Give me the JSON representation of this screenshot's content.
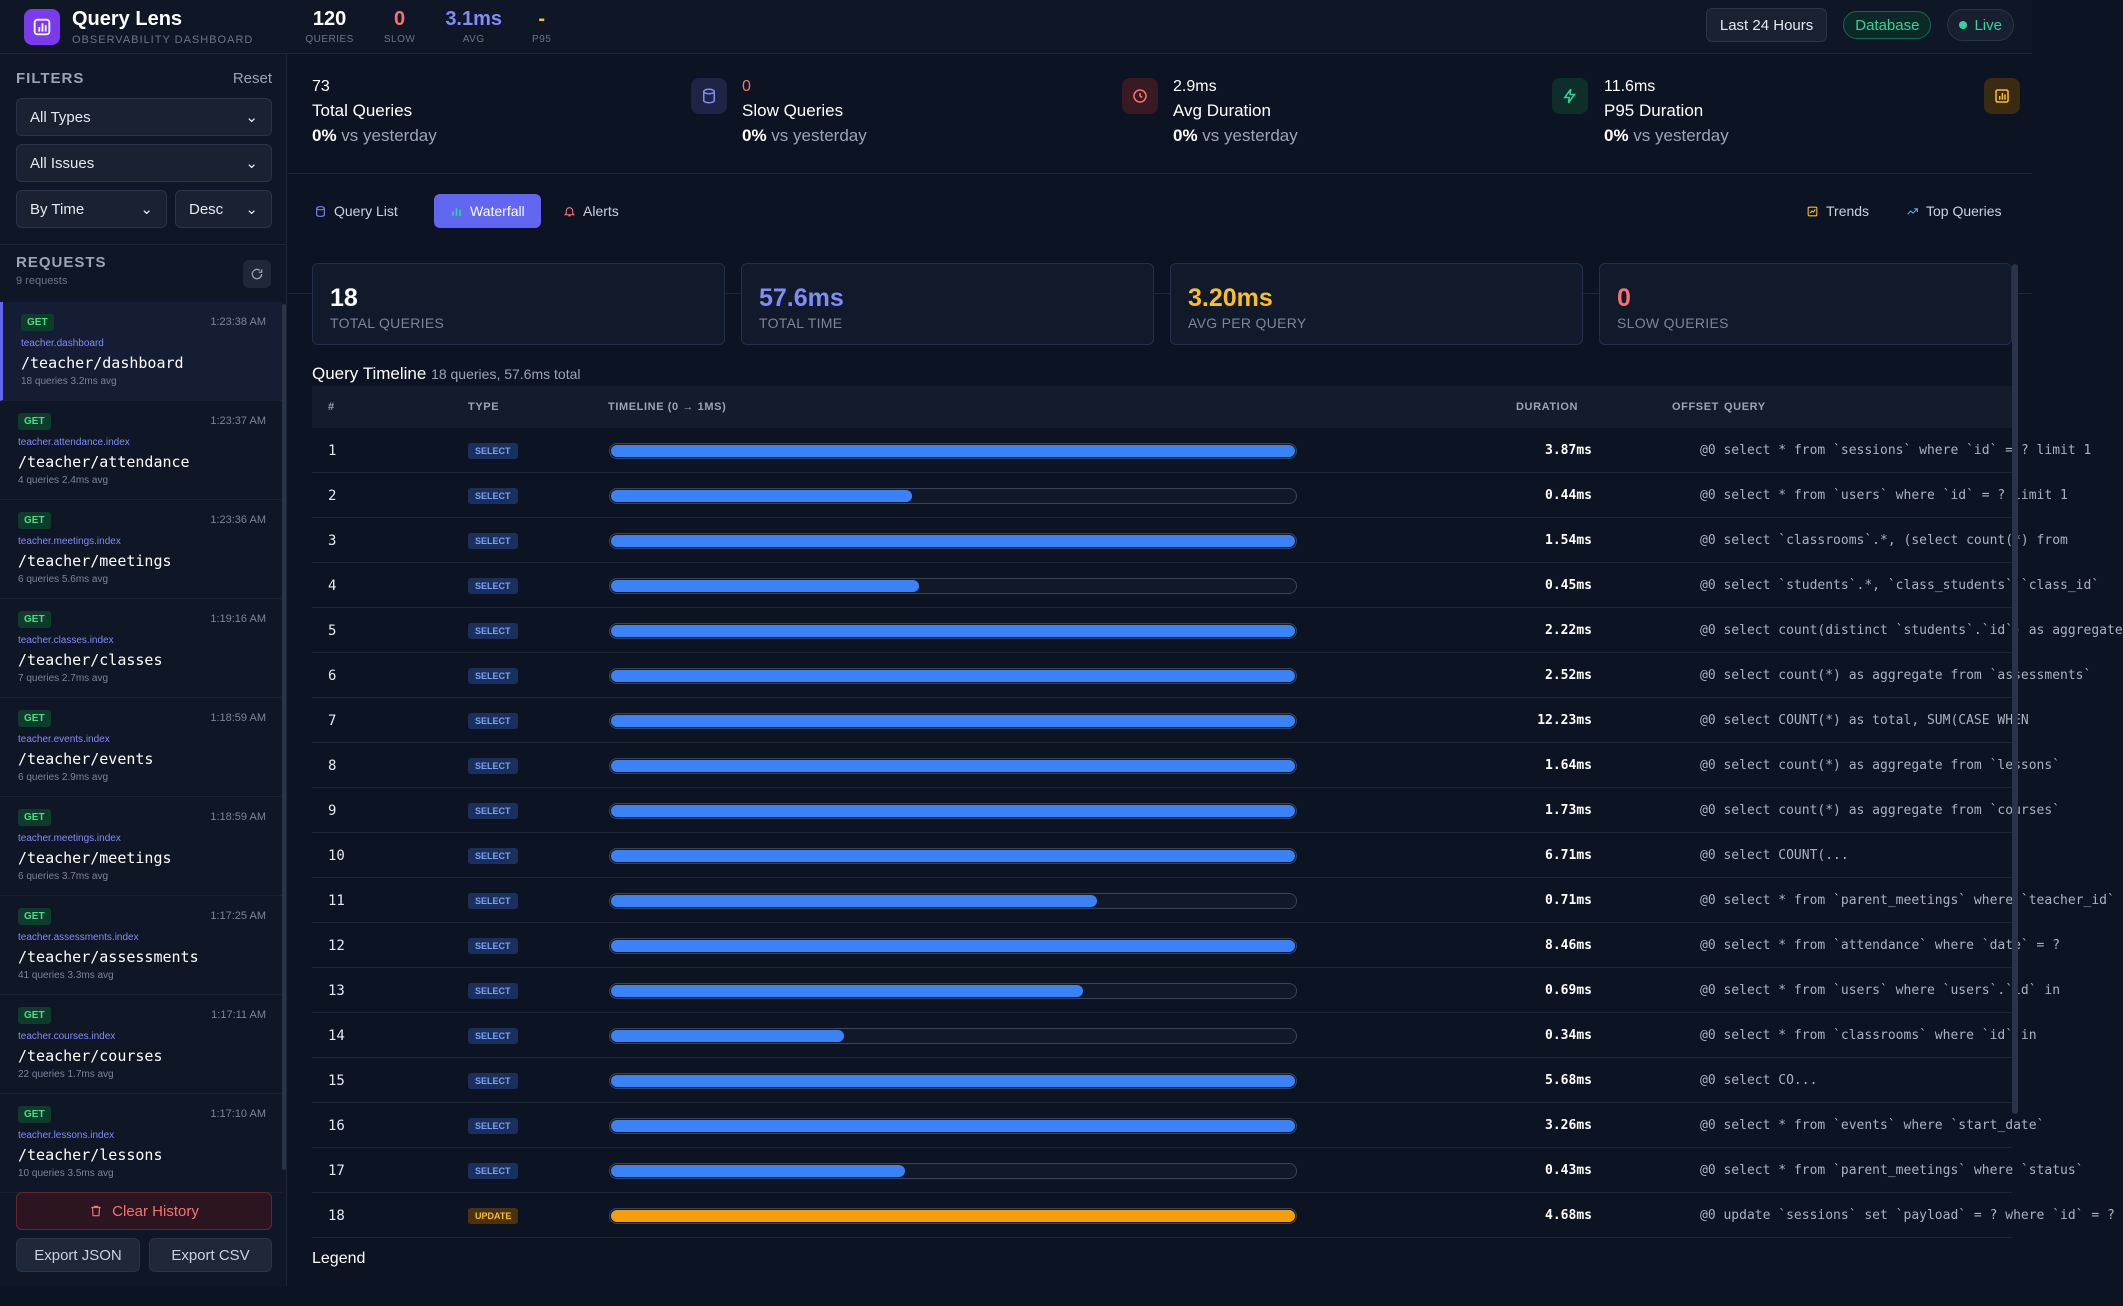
{
  "header": {
    "title": "Query Lens",
    "subtitle": "OBSERVABILITY DASHBOARD",
    "stats": [
      {
        "value": "120",
        "label": "QUERIES",
        "color": "#ffffff"
      },
      {
        "value": "0",
        "label": "SLOW",
        "color": "#f87171"
      },
      {
        "value": "3.1ms",
        "label": "AVG",
        "color": "#818cf8"
      },
      {
        "value": "-",
        "label": "P95",
        "color": "#fbbf24"
      }
    ],
    "range_label": "Last 24 Hours",
    "source_label": "Database",
    "live_label": "Live"
  },
  "sidebar": {
    "filters_title": "FILTERS",
    "reset_label": "Reset",
    "type_select": "All Types",
    "issue_select": "All Issues",
    "sort_select": "By Time",
    "order_select": "Desc",
    "requests_title": "REQUESTS",
    "requests_count": "9 requests",
    "requests": [
      {
        "method": "GET",
        "time": "1:23:38 AM",
        "route": "teacher.dashboard",
        "path": "/teacher/dashboard",
        "meta": "18 queries  3.2ms avg"
      },
      {
        "method": "GET",
        "time": "1:23:37 AM",
        "route": "teacher.attendance.index",
        "path": "/teacher/attendance",
        "meta": "4 queries  2.4ms avg"
      },
      {
        "method": "GET",
        "time": "1:23:36 AM",
        "route": "teacher.meetings.index",
        "path": "/teacher/meetings",
        "meta": "6 queries  5.6ms avg"
      },
      {
        "method": "GET",
        "time": "1:19:16 AM",
        "route": "teacher.classes.index",
        "path": "/teacher/classes",
        "meta": "7 queries  2.7ms avg"
      },
      {
        "method": "GET",
        "time": "1:18:59 AM",
        "route": "teacher.events.index",
        "path": "/teacher/events",
        "meta": "6 queries  2.9ms avg"
      },
      {
        "method": "GET",
        "time": "1:18:59 AM",
        "route": "teacher.meetings.index",
        "path": "/teacher/meetings",
        "meta": "6 queries  3.7ms avg"
      },
      {
        "method": "GET",
        "time": "1:17:25 AM",
        "route": "teacher.assessments.index",
        "path": "/teacher/assessments",
        "meta": "41 queries  3.3ms avg"
      },
      {
        "method": "GET",
        "time": "1:17:11 AM",
        "route": "teacher.courses.index",
        "path": "/teacher/courses",
        "meta": "22 queries  1.7ms avg"
      },
      {
        "method": "GET",
        "time": "1:17:10 AM",
        "route": "teacher.lessons.index",
        "path": "/teacher/lessons",
        "meta": "10 queries  3.5ms avg"
      }
    ],
    "clear_label": "Clear History",
    "export_json_label": "Export JSON",
    "export_csv_label": "Export CSV"
  },
  "summary": [
    {
      "value": "73",
      "name": "Total Queries",
      "delta": "0%",
      "delta_text": "vs yesterday",
      "icon": "database-icon",
      "icon_color": "#818cf8",
      "icon_bg": "#1e2445"
    },
    {
      "value": "0",
      "name": "Slow Queries",
      "delta": "0%",
      "delta_text": "vs yesterday",
      "icon": "clock-icon",
      "icon_color": "#f87171",
      "icon_bg": "#3a1a22",
      "value_color": "#f87171"
    },
    {
      "value": "2.9ms",
      "name": "Avg Duration",
      "delta": "0%",
      "delta_text": "vs yesterday",
      "icon": "bolt-icon",
      "icon_color": "#34d399",
      "icon_bg": "#0e2e2a"
    },
    {
      "value": "11.6ms",
      "name": "P95 Duration",
      "delta": "0%",
      "delta_text": "vs yesterday",
      "icon": "bar-chart-icon",
      "icon_color": "#fbbf24",
      "icon_bg": "#3a2a10"
    }
  ],
  "tabs": {
    "query_list": "Query List",
    "waterfall": "Waterfall",
    "alerts": "Alerts",
    "trends": "Trends",
    "top_queries": "Top Queries"
  },
  "cards": [
    {
      "value": "18",
      "label": "TOTAL QUERIES",
      "color": "#ffffff"
    },
    {
      "value": "57.6ms",
      "label": "TOTAL TIME",
      "color": "#818cf8"
    },
    {
      "value": "3.20ms",
      "label": "AVG PER QUERY",
      "color": "#fbbf24"
    },
    {
      "value": "0",
      "label": "SLOW QUERIES",
      "color": "#f87171"
    }
  ],
  "timeline": {
    "title": "Query Timeline",
    "subtitle": "18 queries, 57.6ms total",
    "columns": {
      "num": "#",
      "type": "TYPE",
      "timeline": "TIMELINE (0 → 1MS)",
      "duration": "DURATION",
      "offset": "OFFSET",
      "query": "QUERY"
    },
    "bar_colors": {
      "select": "#3b82f6",
      "update": "#f59e0b"
    },
    "rows": [
      {
        "n": "1",
        "type": "SELECT",
        "fill": 1.0,
        "duration": "3.87ms",
        "query": "@0 select * from `sessions` where `id` = ? limit 1"
      },
      {
        "n": "2",
        "type": "SELECT",
        "fill": 0.44,
        "duration": "0.44ms",
        "query": "@0 select * from `users` where `id` = ? limit 1"
      },
      {
        "n": "3",
        "type": "SELECT",
        "fill": 1.0,
        "duration": "1.54ms",
        "query": "@0 select `classrooms`.*, (select count(*) from"
      },
      {
        "n": "4",
        "type": "SELECT",
        "fill": 0.45,
        "duration": "0.45ms",
        "query": "@0 select `students`.*, `class_students`.`class_id`"
      },
      {
        "n": "5",
        "type": "SELECT",
        "fill": 1.0,
        "duration": "2.22ms",
        "query": "@0 select count(distinct `students`.`id`) as aggregate"
      },
      {
        "n": "6",
        "type": "SELECT",
        "fill": 1.0,
        "duration": "2.52ms",
        "query": "@0 select count(*) as aggregate from `assessments`"
      },
      {
        "n": "7",
        "type": "SELECT",
        "fill": 1.0,
        "duration": "12.23ms",
        "query": "@0 select COUNT(*) as total, SUM(CASE WHEN"
      },
      {
        "n": "8",
        "type": "SELECT",
        "fill": 1.0,
        "duration": "1.64ms",
        "query": "@0 select count(*) as aggregate from `lessons`"
      },
      {
        "n": "9",
        "type": "SELECT",
        "fill": 1.0,
        "duration": "1.73ms",
        "query": "@0 select count(*) as aggregate from `courses`"
      },
      {
        "n": "10",
        "type": "SELECT",
        "fill": 1.0,
        "duration": "6.71ms",
        "query": "@0 select COUNT(..."
      },
      {
        "n": "11",
        "type": "SELECT",
        "fill": 0.71,
        "duration": "0.71ms",
        "query": "@0 select * from `parent_meetings` where `teacher_id`"
      },
      {
        "n": "12",
        "type": "SELECT",
        "fill": 1.0,
        "duration": "8.46ms",
        "query": "@0 select * from `attendance` where `date` = ?"
      },
      {
        "n": "13",
        "type": "SELECT",
        "fill": 0.69,
        "duration": "0.69ms",
        "query": "@0 select * from `users` where `users`.`id` in"
      },
      {
        "n": "14",
        "type": "SELECT",
        "fill": 0.34,
        "duration": "0.34ms",
        "query": "@0 select * from `classrooms` where `id` in"
      },
      {
        "n": "15",
        "type": "SELECT",
        "fill": 1.0,
        "duration": "5.68ms",
        "query": "@0 select CO..."
      },
      {
        "n": "16",
        "type": "SELECT",
        "fill": 1.0,
        "duration": "3.26ms",
        "query": "@0 select * from `events` where `start_date`"
      },
      {
        "n": "17",
        "type": "SELECT",
        "fill": 0.43,
        "duration": "0.43ms",
        "query": "@0 select * from `parent_meetings` where `status`"
      },
      {
        "n": "18",
        "type": "UPDATE",
        "fill": 1.0,
        "duration": "4.68ms",
        "query": "@0 update `sessions` set `payload` = ? where `id` = ?"
      }
    ],
    "legend_title": "Legend"
  }
}
